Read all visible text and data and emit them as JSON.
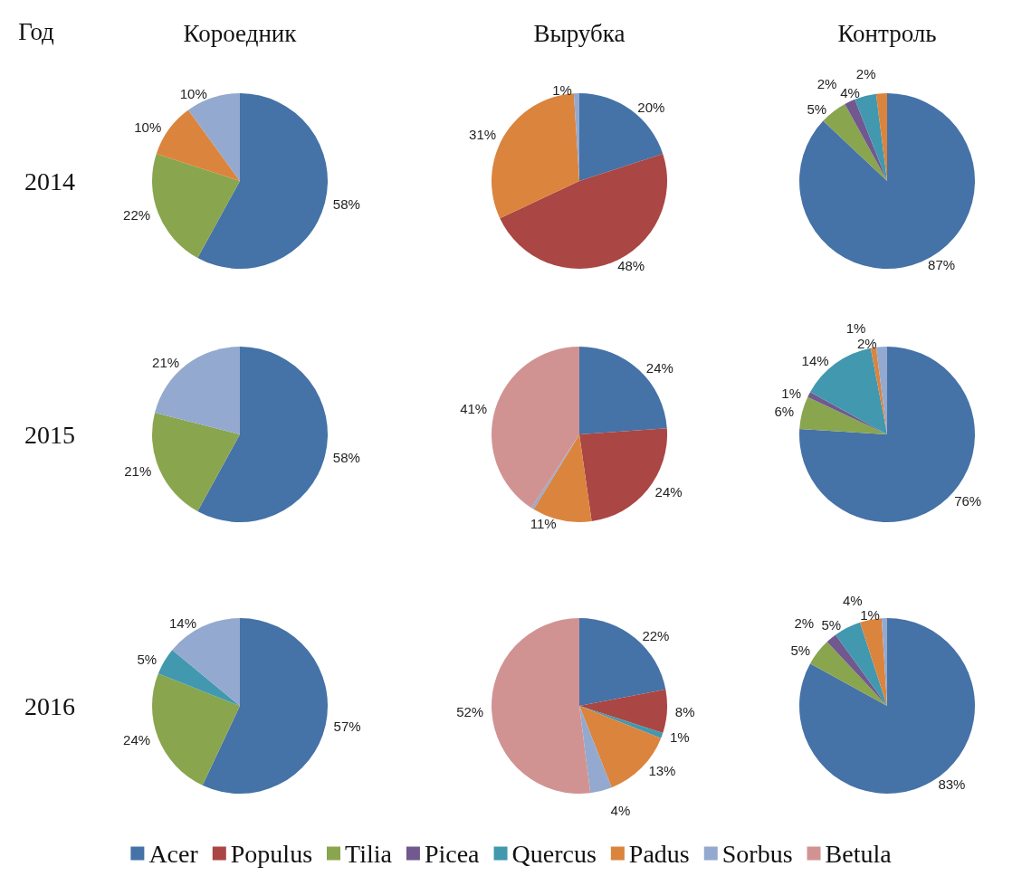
{
  "chart_data": {
    "type": "pie",
    "annotations": [
      "Год",
      "Короедник",
      "Вырубка",
      "Контроль",
      "2014",
      "2015",
      "2016"
    ],
    "categories": [
      "Acer",
      "Populus",
      "Tilia",
      "Picea",
      "Quercus",
      "Padus",
      "Sorbus",
      "Betula"
    ],
    "colors": [
      "#4572a7",
      "#aa4643",
      "#89a54e",
      "#71588f",
      "#4198af",
      "#db843d",
      "#93a9cf",
      "#d19392"
    ],
    "legend": "bottom",
    "series": [
      {
        "values": [
          58,
          null,
          22,
          null,
          null,
          10,
          10,
          null
        ],
        "value_labels": [
          "58%",
          null,
          "22%",
          null,
          null,
          "10%",
          "10%",
          null
        ]
      },
      {
        "values": [
          20,
          48,
          null,
          null,
          null,
          31,
          1,
          null
        ],
        "value_labels": [
          "20%",
          "48%",
          null,
          null,
          null,
          "31%",
          "1%",
          null
        ]
      },
      {
        "values": [
          87,
          null,
          5,
          2,
          4,
          2,
          null,
          null
        ],
        "value_labels": [
          "87%",
          null,
          "5%",
          "2%",
          "4%",
          "2%",
          null,
          null
        ]
      },
      {
        "values": [
          58,
          null,
          21,
          null,
          null,
          null,
          21,
          null
        ],
        "value_labels": [
          "58%",
          null,
          "21%",
          null,
          null,
          null,
          "21%",
          null
        ]
      },
      {
        "values": [
          24,
          24,
          null,
          null,
          null,
          11,
          0.5,
          41
        ],
        "value_labels": [
          "24%",
          "24%",
          null,
          null,
          null,
          "11%",
          null,
          "41%"
        ]
      },
      {
        "values": [
          76,
          null,
          6,
          1,
          14,
          1,
          2,
          null
        ],
        "value_labels": [
          "76%",
          null,
          "6%",
          "1%",
          "14%",
          "1%",
          "2%",
          null
        ]
      },
      {
        "values": [
          57,
          null,
          24,
          null,
          5,
          null,
          14,
          null
        ],
        "value_labels": [
          "57%",
          null,
          "24%",
          null,
          "5%",
          null,
          "14%",
          null
        ]
      },
      {
        "values": [
          22,
          8,
          null,
          null,
          1,
          13,
          4,
          52
        ],
        "value_labels": [
          "22%",
          "8%",
          null,
          null,
          "1%",
          "13%",
          "4%",
          "52%"
        ]
      },
      {
        "values": [
          83,
          null,
          5,
          2,
          5,
          4,
          1,
          null
        ],
        "value_labels": [
          "83%",
          null,
          "5%",
          "2%",
          "5%",
          "4%",
          "1%",
          null
        ]
      }
    ]
  }
}
